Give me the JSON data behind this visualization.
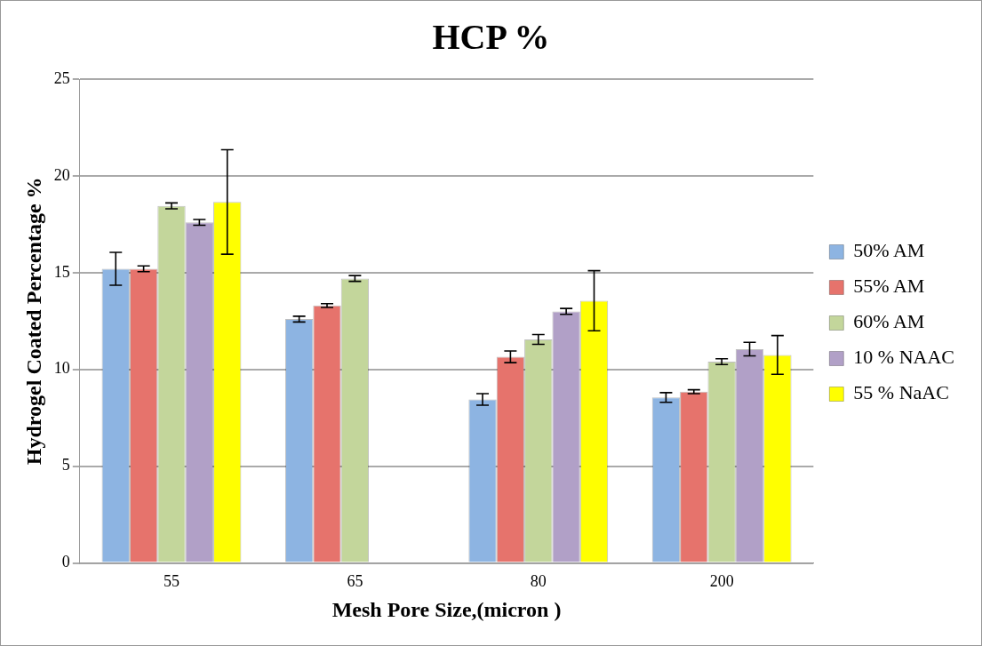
{
  "chart_data": {
    "type": "bar",
    "title": "HCP %",
    "xlabel": "Mesh Pore Size,(micron )",
    "ylabel": "Hydrogel Coated Percentage %",
    "categories": [
      "55",
      "65",
      "80",
      "200"
    ],
    "series": [
      {
        "name": "50% AM",
        "color": "#8db4e2",
        "values": [
          15.2,
          12.6,
          8.45,
          8.55
        ],
        "errors": [
          0.85,
          0.15,
          0.3,
          0.25
        ]
      },
      {
        "name": "55% AM",
        "color": "#e6736c",
        "values": [
          15.2,
          13.3,
          10.65,
          8.85
        ],
        "errors": [
          0.15,
          0.1,
          0.3,
          0.1
        ]
      },
      {
        "name": "60% AM",
        "color": "#c3d69b",
        "values": [
          18.45,
          14.7,
          11.55,
          10.4
        ],
        "errors": [
          0.15,
          0.15,
          0.25,
          0.15
        ]
      },
      {
        "name": "10 % NAAC",
        "color": "#b1a0c7",
        "values": [
          17.6,
          null,
          13.0,
          11.05
        ],
        "errors": [
          0.15,
          null,
          0.15,
          0.35
        ]
      },
      {
        "name": "55 % NaAC",
        "color": "#ffff00",
        "values": [
          18.65,
          null,
          13.55,
          10.75
        ],
        "errors": [
          2.7,
          null,
          1.55,
          1.0
        ]
      }
    ],
    "ylim": [
      0,
      25
    ],
    "yticks": [
      0,
      5,
      10,
      15,
      20,
      25
    ],
    "grid": "y",
    "legend": "right"
  }
}
